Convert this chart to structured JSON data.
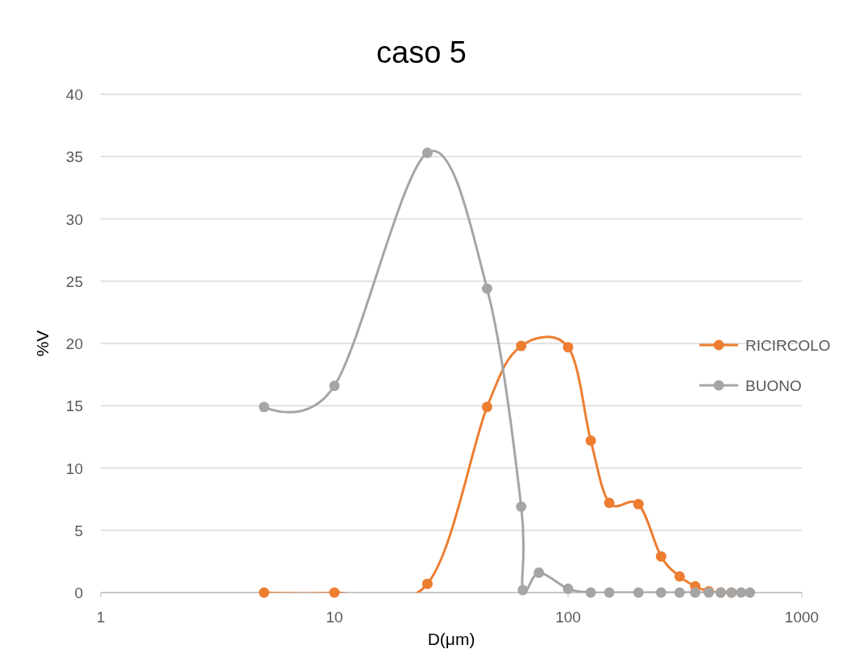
{
  "chart_data": {
    "type": "line",
    "title": "caso 5",
    "xlabel": "D(μm)",
    "ylabel": "%V",
    "xlim": [
      1,
      1000
    ],
    "xticks": [
      1,
      10,
      100,
      1000
    ],
    "ylim": [
      0,
      40
    ],
    "yticks": [
      0,
      5,
      10,
      15,
      20,
      25,
      30,
      35,
      40
    ],
    "log": "x",
    "grid": "y",
    "legend": "right",
    "marker": "circle",
    "line_style": "solid",
    "series": [
      {
        "name": "RICIRCOLO",
        "color": "#ed7d31",
        "x": [
          5,
          10,
          25,
          45,
          63,
          100,
          125,
          150,
          200,
          250,
          300,
          350,
          400,
          450,
          500
        ],
        "values": [
          0,
          0,
          0.7,
          14.9,
          19.8,
          19.7,
          12.2,
          7.2,
          7.1,
          2.9,
          1.3,
          0.5,
          0.1,
          0,
          0
        ]
      },
      {
        "name": "BUONO",
        "color": "#a5a5a5",
        "x": [
          5,
          10,
          25,
          45,
          63,
          64,
          75,
          100,
          125,
          150,
          200,
          250,
          300,
          350,
          400,
          450,
          500,
          550,
          600
        ],
        "values": [
          14.9,
          16.6,
          35.3,
          24.4,
          6.9,
          0.2,
          1.6,
          0.3,
          0,
          0,
          0,
          0,
          0,
          0,
          0,
          0,
          0,
          0,
          0
        ]
      }
    ]
  }
}
